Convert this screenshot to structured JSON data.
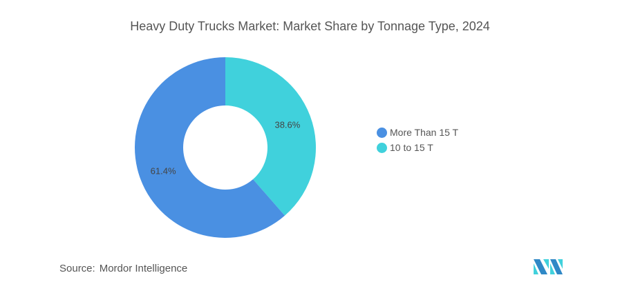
{
  "chart_data": {
    "type": "pie",
    "title": "Heavy Duty Trucks Market: Market Share by Tonnage Type, 2024",
    "slices": [
      {
        "label": "10 to 15 T",
        "value": 38.6,
        "display": "38.6%",
        "color": "#40D1DC"
      },
      {
        "label": "More Than 15 T",
        "value": 61.4,
        "display": "61.4%",
        "color": "#4A90E2"
      }
    ],
    "legend": [
      {
        "label": "More Than 15 T",
        "color": "#4A90E2"
      },
      {
        "label": "10 to 15 T",
        "color": "#40D1DC"
      }
    ],
    "legend_position": "right",
    "donut": true
  },
  "source": {
    "label": "Source:",
    "value": "Mordor Intelligence"
  }
}
